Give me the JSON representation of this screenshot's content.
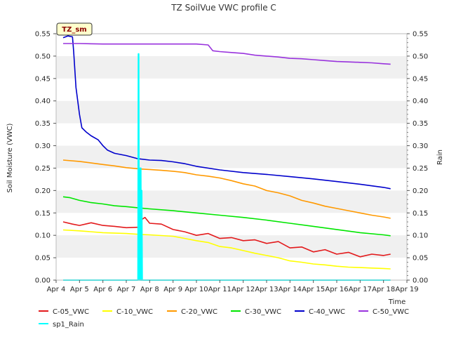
{
  "chart_data": {
    "type": "line",
    "title": "TZ SoilVue VWC profile C",
    "badge": "TZ_sm",
    "ylabel": "Soil Moisture (VWC)",
    "y2label": "Rain",
    "xlabel": "Time",
    "xlim": [
      4,
      19
    ],
    "ylim": [
      0,
      0.55
    ],
    "y2lim": [
      0,
      0.55
    ],
    "x_ticks": [
      4,
      5,
      6,
      7,
      8,
      9,
      10,
      11,
      12,
      13,
      14,
      15,
      16,
      17,
      18,
      19
    ],
    "x_tick_labels": [
      "Apr 4",
      "Apr 5",
      "Apr 6",
      "Apr 7",
      "Apr 8",
      "Apr 9",
      "Apr 10",
      "Apr 11",
      "Apr 12",
      "Apr 13",
      "Apr 14",
      "Apr 15",
      "Apr 16",
      "Apr 17",
      "Apr 18",
      "Apr 19"
    ],
    "y_ticks": [
      0,
      0.05,
      0.1,
      0.15,
      0.2,
      0.25,
      0.3,
      0.35,
      0.4,
      0.45,
      0.5,
      0.55
    ],
    "y_tick_labels": [
      "0.00",
      "0.05",
      "0.10",
      "0.15",
      "0.20",
      "0.25",
      "0.30",
      "0.35",
      "0.40",
      "0.45",
      "0.50",
      "0.55"
    ],
    "grid": "horizontal bands",
    "legend_position": "bottom",
    "series": [
      {
        "name": "C-05_VWC",
        "color": "#e31a1c",
        "x": [
          4.3,
          4.7,
          5.0,
          5.5,
          6.0,
          6.5,
          7.0,
          7.5,
          7.6,
          7.65,
          7.8,
          8.0,
          8.5,
          9.0,
          9.5,
          10.0,
          10.5,
          11.0,
          11.5,
          12.0,
          12.5,
          13.0,
          13.5,
          14.0,
          14.5,
          15.0,
          15.5,
          16.0,
          16.5,
          17.0,
          17.5,
          18.0,
          18.3
        ],
        "y": [
          0.13,
          0.125,
          0.122,
          0.128,
          0.122,
          0.12,
          0.117,
          0.118,
          0.12,
          0.135,
          0.14,
          0.127,
          0.125,
          0.113,
          0.108,
          0.1,
          0.104,
          0.093,
          0.095,
          0.088,
          0.09,
          0.082,
          0.086,
          0.072,
          0.074,
          0.063,
          0.068,
          0.058,
          0.062,
          0.052,
          0.058,
          0.055,
          0.058
        ]
      },
      {
        "name": "C-10_VWC",
        "color": "#ffff00",
        "x": [
          4.3,
          5.0,
          6.0,
          7.0,
          7.6,
          8.0,
          9.0,
          9.5,
          10.0,
          10.5,
          11.0,
          11.5,
          12.0,
          12.5,
          13.0,
          13.5,
          14.0,
          14.5,
          15.0,
          15.5,
          16.0,
          16.5,
          17.0,
          17.5,
          18.0,
          18.3
        ],
        "y": [
          0.112,
          0.11,
          0.106,
          0.104,
          0.102,
          0.101,
          0.098,
          0.093,
          0.088,
          0.084,
          0.075,
          0.072,
          0.066,
          0.06,
          0.055,
          0.05,
          0.043,
          0.04,
          0.036,
          0.034,
          0.031,
          0.029,
          0.028,
          0.027,
          0.026,
          0.025
        ]
      },
      {
        "name": "C-20_VWC",
        "color": "#ff9900",
        "x": [
          4.3,
          5.0,
          6.0,
          6.5,
          7.0,
          7.6,
          8.0,
          8.5,
          9.0,
          9.5,
          10.0,
          10.5,
          11.0,
          11.5,
          12.0,
          12.5,
          13.0,
          13.5,
          14.0,
          14.5,
          15.0,
          15.5,
          16.0,
          16.5,
          17.0,
          17.5,
          18.0,
          18.3
        ],
        "y": [
          0.268,
          0.265,
          0.258,
          0.255,
          0.251,
          0.248,
          0.247,
          0.245,
          0.243,
          0.24,
          0.235,
          0.232,
          0.228,
          0.222,
          0.215,
          0.21,
          0.2,
          0.195,
          0.188,
          0.178,
          0.172,
          0.165,
          0.16,
          0.155,
          0.15,
          0.145,
          0.141,
          0.138
        ]
      },
      {
        "name": "C-30_VWC",
        "color": "#00e600",
        "x": [
          4.3,
          4.6,
          5.0,
          5.5,
          6.0,
          6.5,
          7.0,
          7.6,
          8.0,
          9.0,
          10.0,
          11.0,
          12.0,
          13.0,
          14.0,
          15.0,
          16.0,
          17.0,
          18.0,
          18.3
        ],
        "y": [
          0.186,
          0.184,
          0.178,
          0.173,
          0.17,
          0.166,
          0.164,
          0.161,
          0.159,
          0.155,
          0.15,
          0.145,
          0.14,
          0.134,
          0.127,
          0.12,
          0.113,
          0.106,
          0.101,
          0.099
        ]
      },
      {
        "name": "C-40_VWC",
        "color": "#0000cc",
        "x": [
          4.3,
          4.5,
          4.7,
          4.75,
          4.85,
          5.0,
          5.1,
          5.3,
          5.5,
          5.8,
          6.0,
          6.2,
          6.5,
          7.0,
          7.5,
          8.0,
          8.5,
          9.0,
          9.5,
          10.0,
          11.0,
          12.0,
          13.0,
          14.0,
          15.0,
          16.0,
          17.0,
          18.0,
          18.3
        ],
        "y": [
          0.541,
          0.545,
          0.543,
          0.51,
          0.43,
          0.37,
          0.34,
          0.33,
          0.322,
          0.313,
          0.3,
          0.29,
          0.283,
          0.278,
          0.271,
          0.268,
          0.267,
          0.264,
          0.26,
          0.254,
          0.246,
          0.24,
          0.236,
          0.231,
          0.226,
          0.22,
          0.214,
          0.207,
          0.204
        ]
      },
      {
        "name": "C-50_VWC",
        "color": "#9933dd",
        "x": [
          4.3,
          5.0,
          6.0,
          7.0,
          8.0,
          9.0,
          10.0,
          10.5,
          10.7,
          11.0,
          11.5,
          12.0,
          12.5,
          13.0,
          13.5,
          14.0,
          14.5,
          15.0,
          15.5,
          16.0,
          16.5,
          17.0,
          17.5,
          18.0,
          18.3
        ],
        "y": [
          0.528,
          0.528,
          0.527,
          0.527,
          0.527,
          0.527,
          0.527,
          0.525,
          0.512,
          0.51,
          0.508,
          0.506,
          0.502,
          0.5,
          0.498,
          0.495,
          0.494,
          0.492,
          0.49,
          0.488,
          0.487,
          0.486,
          0.485,
          0.483,
          0.482
        ]
      },
      {
        "name": "sp1_Rain",
        "color": "#00ffff",
        "axis": "right",
        "x": [
          4.3,
          7.5,
          7.52,
          7.53,
          7.55,
          7.57,
          7.6,
          7.62,
          7.64,
          7.66,
          7.68,
          7.7,
          7.72,
          18.3
        ],
        "y": [
          0,
          0,
          0.505,
          0.505,
          0,
          0.25,
          0,
          0.25,
          0,
          0.2,
          0,
          0,
          0,
          0
        ]
      }
    ]
  }
}
